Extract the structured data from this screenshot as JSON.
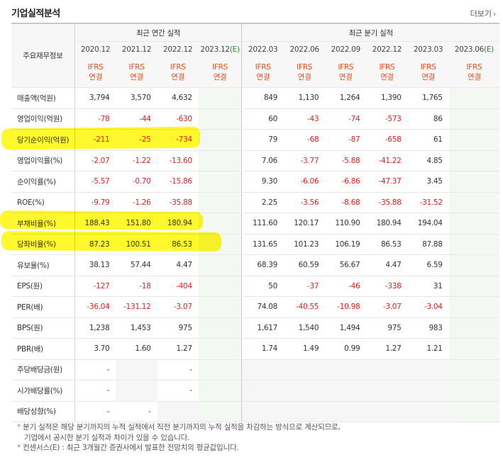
{
  "title": "기업실적분석",
  "more_label": "더보기",
  "corner_label": "주요재무정보",
  "group_annual": "최근 연간 실적",
  "group_quarter": "최근 분기 실적",
  "annual_periods": [
    "2020.12",
    "2021.12",
    "2022.12",
    "2023.12"
  ],
  "annual_est_suffix": "(E)",
  "quarter_periods": [
    "2022.03",
    "2022.06",
    "2022.09",
    "2022.12",
    "2023.03",
    "2023.06"
  ],
  "quarter_est_suffix": "(E)",
  "ifrs_line1": "IFRS",
  "ifrs_line2": "연결",
  "rows": [
    {
      "label": "매출액(억원)",
      "annual": [
        "3,794",
        "3,570",
        "4,632",
        ""
      ],
      "quarter": [
        "849",
        "1,130",
        "1,264",
        "1,390",
        "1,765",
        ""
      ]
    },
    {
      "label": "영업이익(억원)",
      "annual": [
        "-78",
        "-44",
        "-630",
        ""
      ],
      "quarter": [
        "60",
        "-43",
        "-74",
        "-573",
        "86",
        ""
      ]
    },
    {
      "label": "당기순이익(억원)",
      "annual": [
        "-211",
        "-25",
        "-734",
        ""
      ],
      "quarter": [
        "79",
        "-68",
        "-87",
        "-658",
        "61",
        ""
      ]
    },
    {
      "label": "영업이익률(%)",
      "annual": [
        "-2.07",
        "-1.22",
        "-13.60",
        ""
      ],
      "quarter": [
        "7.06",
        "-3.77",
        "-5.88",
        "-41.22",
        "4.85",
        ""
      ]
    },
    {
      "label": "순이익률(%)",
      "annual": [
        "-5.57",
        "-0.70",
        "-15.86",
        ""
      ],
      "quarter": [
        "9.30",
        "-6.06",
        "-6.86",
        "-47.37",
        "3.45",
        ""
      ]
    },
    {
      "label": "ROE(%)",
      "annual": [
        "-9.79",
        "-1.26",
        "-35.88",
        ""
      ],
      "quarter": [
        "2.25",
        "-3.56",
        "-8.68",
        "-35.88",
        "-31.52",
        ""
      ]
    },
    {
      "label": "부채비율(%)",
      "annual": [
        "188.43",
        "151.80",
        "180.94",
        ""
      ],
      "quarter": [
        "111.60",
        "120.17",
        "110.90",
        "180.94",
        "194.04",
        ""
      ]
    },
    {
      "label": "당좌비율(%)",
      "annual": [
        "87.23",
        "100.51",
        "86.53",
        ""
      ],
      "quarter": [
        "131.65",
        "101.23",
        "106.19",
        "86.53",
        "87.88",
        ""
      ]
    },
    {
      "label": "유보율(%)",
      "annual": [
        "38.13",
        "57.44",
        "4.47",
        ""
      ],
      "quarter": [
        "68.39",
        "60.59",
        "56.67",
        "4.47",
        "6.59",
        ""
      ]
    },
    {
      "label": "EPS(원)",
      "annual": [
        "-127",
        "-18",
        "-404",
        ""
      ],
      "quarter": [
        "50",
        "-37",
        "-46",
        "-338",
        "31",
        ""
      ]
    },
    {
      "label": "PER(배)",
      "annual": [
        "-36.04",
        "-131.12",
        "-3.07",
        ""
      ],
      "quarter": [
        "74.08",
        "-40.55",
        "-10.98",
        "-3.07",
        "-3.04",
        ""
      ]
    },
    {
      "label": "BPS(원)",
      "annual": [
        "1,238",
        "1,453",
        "975",
        ""
      ],
      "quarter": [
        "1,617",
        "1,540",
        "1,494",
        "975",
        "983",
        ""
      ]
    },
    {
      "label": "PBR(배)",
      "annual": [
        "3.70",
        "1.60",
        "1.27",
        ""
      ],
      "quarter": [
        "1.74",
        "1.49",
        "0.99",
        "1.27",
        "1.21",
        ""
      ]
    },
    {
      "label": "주당배당금(원)",
      "annual": [
        "-",
        "",
        "-",
        ""
      ],
      "quarter": [
        "",
        "",
        "",
        "",
        "",
        ""
      ]
    },
    {
      "label": "시가배당률(%)",
      "annual": [
        "-",
        "",
        "-",
        ""
      ],
      "quarter": [
        "",
        "",
        "",
        "",
        "",
        ""
      ]
    },
    {
      "label": "배당성향(%)",
      "annual": [
        "-",
        "-",
        "",
        ""
      ],
      "quarter": [
        "",
        "",
        "",
        "",
        "",
        ""
      ]
    }
  ],
  "highlighted_rows": [
    "당기순이익(억원)",
    "부채비율(%)",
    "당좌비율(%)"
  ],
  "highlight_color": "#fff81a",
  "negative_color": "#e02020",
  "ifrs_color": "#e2501c",
  "notes": {
    "line1": "분기 실적은 해당 분기까지의 누적 실적에서 직전 분기까지의 누적 실적을 차감하는 방식으로 계산되므로,",
    "line2": "기업에서 공시한 분기 실적과 차이가 있을 수 있습니다.",
    "line3_prefix": "컨센서스(",
    "line3_e": "E",
    "line3_suffix": ") : 최근 3개월간 증권사에서 발표한 전망치의 평균값입니다."
  }
}
